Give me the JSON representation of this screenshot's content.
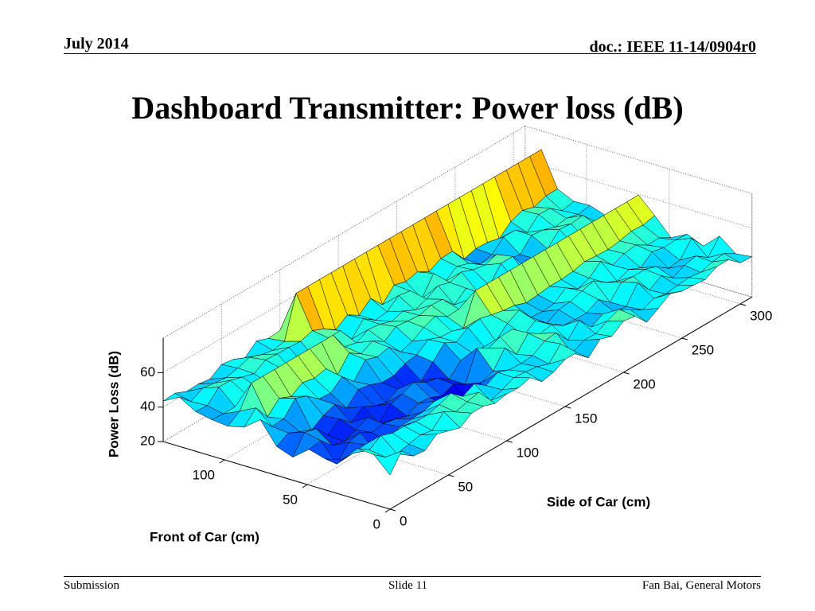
{
  "header": {
    "date": "July 2014",
    "doc": "doc.: IEEE 11-14/0904r0"
  },
  "title": "Dashboard Transmitter: Power loss (dB)",
  "chart_data": {
    "type": "surface",
    "x_label": "Front of Car (cm)",
    "y_label": "Side of Car (cm)",
    "z_label": "Power Loss (dB)",
    "xlim": [
      0,
      137
    ],
    "xticks": [
      0,
      50,
      100
    ],
    "ylim": [
      0,
      310
    ],
    "yticks": [
      0,
      50,
      100,
      150,
      200,
      250,
      300
    ],
    "zlim": [
      20,
      80
    ],
    "zticks": [
      20,
      40,
      60
    ],
    "grid": true
  },
  "footer": {
    "left": "Submission",
    "center": "Slide 11",
    "right": "Fan Bai, General Motors"
  }
}
